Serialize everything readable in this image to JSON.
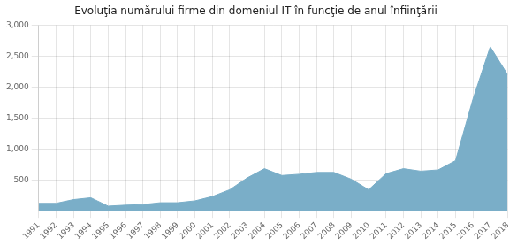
{
  "chart_data": {
    "type": "area",
    "title": "Evoluţia numărului firme din domeniul IT în funcţie de anul înfiinţării",
    "x": [
      1991,
      1992,
      1993,
      1994,
      1995,
      1996,
      1997,
      1998,
      1999,
      2000,
      2001,
      2002,
      2003,
      2004,
      2005,
      2006,
      2007,
      2008,
      2009,
      2010,
      2011,
      2012,
      2013,
      2014,
      2015,
      2016,
      2017,
      2018
    ],
    "values": [
      120,
      120,
      180,
      210,
      75,
      90,
      100,
      130,
      130,
      160,
      230,
      340,
      530,
      680,
      570,
      590,
      620,
      620,
      510,
      340,
      600,
      680,
      640,
      660,
      810,
      1800,
      2650,
      2200
    ],
    "color": "#7AAEC8",
    "xlim": [
      1991,
      2018
    ],
    "xticks": [
      1991,
      1992,
      1993,
      1994,
      1995,
      1996,
      1997,
      1998,
      1999,
      2000,
      2001,
      2002,
      2003,
      2004,
      2005,
      2006,
      2007,
      2008,
      2009,
      2010,
      2011,
      2012,
      2013,
      2014,
      2015,
      2016,
      2017,
      2018
    ],
    "ylim": [
      0,
      3000
    ],
    "yticks": [
      {
        "value": 0,
        "label": null
      },
      500,
      {
        "value": 1000,
        "label": "1,000"
      },
      {
        "value": 1500,
        "label": "1,500"
      },
      {
        "value": 2000,
        "label": "2,000"
      },
      {
        "value": 2500,
        "label": "2,500"
      },
      {
        "value": 3000,
        "label": "3,000"
      }
    ],
    "grid": true
  }
}
